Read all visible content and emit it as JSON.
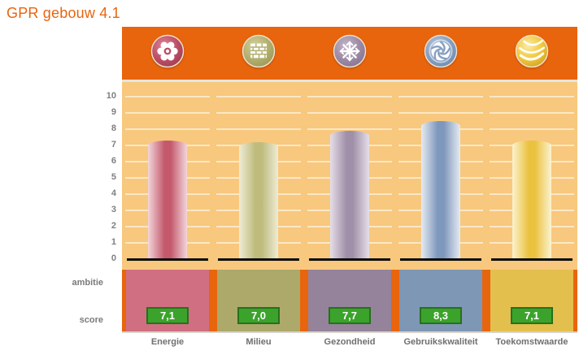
{
  "title": "GPR gebouw 4.1",
  "rows": {
    "ambitie_label": "ambitie",
    "score_label": "score"
  },
  "axis": {
    "min": 0,
    "max": 10,
    "ticks": [
      0,
      1,
      2,
      3,
      4,
      5,
      6,
      7,
      8,
      9,
      10
    ]
  },
  "colors": {
    "accent_orange": "#E8650D",
    "plot_background": "#F8C87E",
    "gridline": "#FAE8C6",
    "baseline_black": "#0A0A0A",
    "badge_green": "#3BA32B",
    "badge_border_green": "#27701C",
    "axis_text_gray": "#7F7F7F",
    "label_text_gray": "#6F6F6F"
  },
  "categories": [
    {
      "label": "Energie",
      "icon": "gear-icon",
      "score": 7.1,
      "score_display": "7,1",
      "bar_color": "#C4596C",
      "bar_edge": "#F2D6DA",
      "block_color": "#D06F81",
      "icon_grad": [
        "#DD8498",
        "#BC4F66",
        "#9E3B52"
      ]
    },
    {
      "label": "Milieu",
      "icon": "brick-wall-icon",
      "score": 7.0,
      "score_display": "7,0",
      "bar_color": "#BEBB7D",
      "bar_edge": "#EEECD4",
      "block_color": "#ACA96B",
      "icon_grad": [
        "#D3D09B",
        "#B2AF70",
        "#9A9754"
      ]
    },
    {
      "label": "Gezondheid",
      "icon": "snowflake-icon",
      "score": 7.7,
      "score_display": "7,7",
      "bar_color": "#A08FA8",
      "bar_edge": "#E5DEE8",
      "block_color": "#94839B",
      "icon_grad": [
        "#C3B4CA",
        "#9D8BA6",
        "#857190"
      ]
    },
    {
      "label": "Gebruikskwaliteit",
      "icon": "aperture-icon",
      "score": 8.3,
      "score_display": "8,3",
      "bar_color": "#7E97BC",
      "bar_edge": "#E6EBF2",
      "block_color": "#7E97B4",
      "icon_grad": [
        "#B4C6DD",
        "#86A0C2",
        "#6C8AB2"
      ]
    },
    {
      "label": "Toekomstwaarde",
      "icon": "yarn-ball-icon",
      "score": 7.1,
      "score_display": "7,1",
      "bar_color": "#EAC23F",
      "bar_edge": "#FBF2CF",
      "block_color": "#E3BF4E",
      "icon_grad": [
        "#FBEBA8",
        "#EFC93F",
        "#D19E1A"
      ]
    }
  ],
  "chart_data": {
    "type": "bar",
    "title": "GPR gebouw 4.1",
    "categories": [
      "Energie",
      "Milieu",
      "Gezondheid",
      "Gebruikskwaliteit",
      "Toekomstwaarde"
    ],
    "values": [
      7.1,
      7.0,
      7.7,
      8.3,
      7.1
    ],
    "value_labels": [
      "7,1",
      "7,0",
      "7,7",
      "8,3",
      "7,1"
    ],
    "series_colors": [
      "#C4596C",
      "#BEBB7D",
      "#A08FA8",
      "#7E97BC",
      "#EAC23F"
    ],
    "xlabel": "",
    "ylabel": "",
    "ylim": [
      0,
      10
    ],
    "ytick_step": 1,
    "grid": true,
    "legend": false
  }
}
